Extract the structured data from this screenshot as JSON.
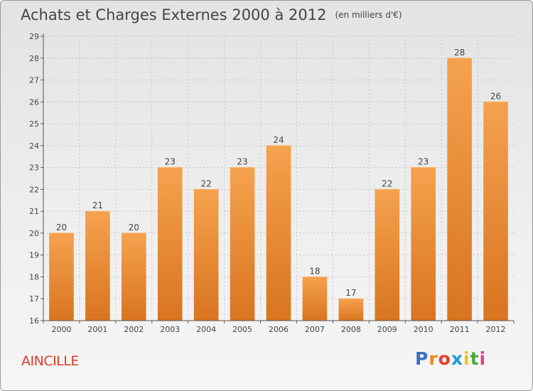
{
  "chart_data": {
    "type": "bar",
    "title": "Achats et Charges Externes 2000 à 2012",
    "unit_note": "(en milliers d'€)",
    "categories": [
      "2000",
      "2001",
      "2002",
      "2003",
      "2004",
      "2005",
      "2006",
      "2007",
      "2008",
      "2009",
      "2010",
      "2011",
      "2012"
    ],
    "values": [
      20,
      21,
      20,
      23,
      22,
      23,
      24,
      18,
      17,
      22,
      23,
      28,
      26
    ],
    "data_labels": [
      "20",
      "21",
      "20",
      "23",
      "22",
      "23",
      "24",
      "18",
      "17",
      "22",
      "23",
      "28",
      "26"
    ],
    "ylim": [
      16,
      29
    ],
    "yticks": [
      16,
      17,
      18,
      19,
      20,
      21,
      22,
      23,
      24,
      25,
      26,
      27,
      28,
      29
    ],
    "grid": true,
    "bar_color_top": "#f5a24e",
    "bar_color_bottom": "#d9741f"
  },
  "commune": "AINCILLE",
  "logo": {
    "letters": [
      "P",
      "r",
      "o",
      "x",
      "i",
      "t",
      "i"
    ],
    "colors": [
      "#3a6fc4",
      "#f08a1c",
      "#e83d2f",
      "#1f9bd1",
      "#f2c21b",
      "#4bab3a",
      "#e83d8a"
    ]
  }
}
